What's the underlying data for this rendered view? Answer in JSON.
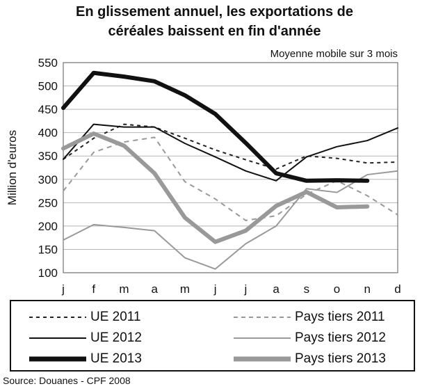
{
  "title_line1": "En glissement annuel, les exportations de",
  "title_line2": "céréales baissent en fin d'année",
  "subtitle": "Moyenne mobile sur 3 mois",
  "source": "Source: Douanes - CPF 2008",
  "chart_data": {
    "type": "line",
    "title": "En glissement annuel, les exportations de céréales baissent en fin d'année",
    "subtitle": "Moyenne mobile sur 3 mois",
    "ylabel": "Million d'euros",
    "xlabel": "",
    "categories": [
      "j",
      "f",
      "m",
      "a",
      "m",
      "j",
      "j",
      "a",
      "s",
      "o",
      "n",
      "d"
    ],
    "ylim": [
      100,
      550
    ],
    "yticks": [
      100,
      150,
      200,
      250,
      300,
      350,
      400,
      450,
      500,
      550
    ],
    "grid": "horizontal",
    "legend_position": "bottom",
    "series": [
      {
        "name": "UE 2011",
        "color": "#222222",
        "style": "dotted",
        "width": 2,
        "values": [
          343,
          388,
          418,
          412,
          388,
          363,
          342,
          322,
          350,
          345,
          335,
          337
        ]
      },
      {
        "name": "Pays tiers 2011",
        "color": "#999999",
        "style": "dashed",
        "width": 2,
        "values": [
          275,
          358,
          380,
          390,
          295,
          258,
          212,
          222,
          268,
          297,
          265,
          224
        ]
      },
      {
        "name": "UE 2012",
        "color": "#111111",
        "style": "solid",
        "width": 2,
        "values": [
          343,
          418,
          412,
          412,
          377,
          348,
          318,
          297,
          348,
          370,
          383,
          410
        ]
      },
      {
        "name": "Pays tiers 2012",
        "color": "#999999",
        "style": "solid",
        "width": 2,
        "values": [
          170,
          203,
          197,
          190,
          132,
          108,
          162,
          200,
          280,
          272,
          310,
          318
        ]
      },
      {
        "name": "UE 2013",
        "color": "#111111",
        "style": "solid",
        "width": 6,
        "values": [
          453,
          528,
          520,
          510,
          480,
          440,
          378,
          313,
          297,
          298,
          297,
          null
        ]
      },
      {
        "name": "Pays tiers 2013",
        "color": "#999999",
        "style": "solid",
        "width": 6,
        "values": [
          366,
          398,
          372,
          313,
          218,
          166,
          190,
          243,
          273,
          240,
          242,
          null
        ]
      }
    ]
  }
}
